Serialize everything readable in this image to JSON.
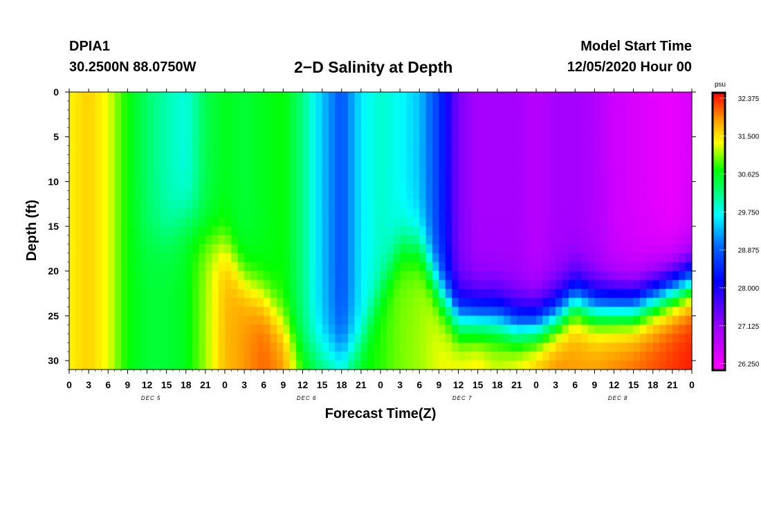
{
  "header": {
    "station": "DPIA1",
    "coords": "30.2500N 88.0750W",
    "title": "2−D Salinity at Depth",
    "model_start_label": "Model Start Time",
    "model_start_value": "12/05/2020 Hour 00"
  },
  "chart_data": {
    "type": "heatmap",
    "title": "2−D Salinity at Depth",
    "xlabel": "Forecast Time(Z)",
    "ylabel": "Depth (ft)",
    "x_tick_labels": [
      "0",
      "3",
      "6",
      "9",
      "12",
      "15",
      "18",
      "21",
      "0",
      "3",
      "6",
      "9",
      "12",
      "15",
      "18",
      "21",
      "0",
      "3",
      "6",
      "9",
      "12",
      "15",
      "18",
      "21",
      "0",
      "3",
      "6",
      "9",
      "12",
      "15",
      "18",
      "21",
      "0"
    ],
    "day_labels": [
      "DEC  5",
      "DEC  6",
      "DEC  7",
      "DEC  8"
    ],
    "xlim_hours": [
      0,
      96
    ],
    "y_ticks": [
      "0",
      "5",
      "10",
      "15",
      "20",
      "25",
      "30"
    ],
    "ylim_ft": [
      0,
      31
    ],
    "colorbar": {
      "unit": "psu",
      "tick_labels": [
        "32.375",
        "31.500",
        "30.625",
        "29.750",
        "28.875",
        "28.000",
        "27.125",
        "26.250"
      ],
      "range": [
        26.1,
        32.5
      ]
    },
    "time_hours": [
      0,
      3,
      6,
      9,
      12,
      15,
      18,
      21,
      24,
      27,
      30,
      33,
      36,
      39,
      42,
      45,
      48,
      51,
      54,
      57,
      60,
      63,
      66,
      69,
      72,
      75,
      78,
      81,
      84,
      87,
      90,
      93,
      96
    ],
    "profiles": [
      {
        "near_surface": 31.4,
        "deep": 31.4,
        "interface_ft": 16
      },
      {
        "near_surface": 31.6,
        "deep": 31.6,
        "interface_ft": 16
      },
      {
        "near_surface": 31.3,
        "deep": 31.3,
        "interface_ft": 16
      },
      {
        "near_surface": 30.7,
        "deep": 30.7,
        "interface_ft": 16
      },
      {
        "near_surface": 30.3,
        "deep": 30.5,
        "interface_ft": 16
      },
      {
        "near_surface": 30.0,
        "deep": 30.5,
        "interface_ft": 16
      },
      {
        "near_surface": 29.8,
        "deep": 30.6,
        "interface_ft": 14
      },
      {
        "near_surface": 30.4,
        "deep": 31.1,
        "interface_ft": 16
      },
      {
        "near_surface": 30.6,
        "deep": 31.7,
        "interface_ft": 17
      },
      {
        "near_surface": 30.5,
        "deep": 31.9,
        "interface_ft": 21
      },
      {
        "near_surface": 30.6,
        "deep": 32.1,
        "interface_ft": 23
      },
      {
        "near_surface": 30.7,
        "deep": 31.9,
        "interface_ft": 26
      },
      {
        "near_surface": 30.2,
        "deep": 30.9,
        "interface_ft": 29
      },
      {
        "near_surface": 29.4,
        "deep": 30.4,
        "interface_ft": 29
      },
      {
        "near_surface": 28.8,
        "deep": 30.3,
        "interface_ft": 30
      },
      {
        "near_surface": 29.6,
        "deep": 30.7,
        "interface_ft": 28
      },
      {
        "near_surface": 29.9,
        "deep": 30.8,
        "interface_ft": 22
      },
      {
        "near_surface": 29.7,
        "deep": 31.0,
        "interface_ft": 17
      },
      {
        "near_surface": 29.4,
        "deep": 31.1,
        "interface_ft": 17
      },
      {
        "near_surface": 28.6,
        "deep": 31.3,
        "interface_ft": 22
      },
      {
        "near_surface": 27.3,
        "deep": 31.4,
        "interface_ft": 25
      },
      {
        "near_surface": 27.0,
        "deep": 31.5,
        "interface_ft": 25
      },
      {
        "near_surface": 27.0,
        "deep": 31.3,
        "interface_ft": 25
      },
      {
        "near_surface": 27.0,
        "deep": 31.5,
        "interface_ft": 26
      },
      {
        "near_surface": 26.8,
        "deep": 31.8,
        "interface_ft": 26
      },
      {
        "near_surface": 27.0,
        "deep": 32.0,
        "interface_ft": 25
      },
      {
        "near_surface": 27.0,
        "deep": 31.9,
        "interface_ft": 23
      },
      {
        "near_surface": 26.9,
        "deep": 31.9,
        "interface_ft": 24
      },
      {
        "near_surface": 26.6,
        "deep": 32.0,
        "interface_ft": 24
      },
      {
        "near_surface": 26.5,
        "deep": 32.1,
        "interface_ft": 24
      },
      {
        "near_surface": 26.4,
        "deep": 32.2,
        "interface_ft": 23
      },
      {
        "near_surface": 26.3,
        "deep": 32.3,
        "interface_ft": 22
      },
      {
        "near_surface": 26.5,
        "deep": 32.4,
        "interface_ft": 21
      }
    ]
  }
}
